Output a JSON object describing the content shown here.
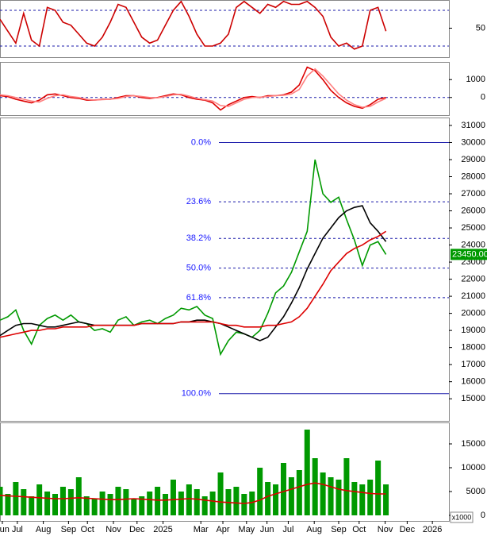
{
  "chart_data": [
    {
      "type": "line",
      "x": [
        0,
        1,
        2,
        3,
        4,
        5,
        6,
        7,
        8,
        9,
        10,
        11,
        12,
        13,
        14,
        15,
        16,
        17,
        18,
        19,
        20,
        21,
        22,
        23,
        24,
        25,
        26,
        27,
        28,
        29,
        30,
        31,
        32,
        33,
        34,
        35,
        36,
        37,
        38,
        39,
        40,
        41,
        42,
        43,
        44,
        45,
        46,
        47,
        48,
        49
      ],
      "xlim": [
        0,
        57
      ],
      "ylim": [
        0,
        100
      ],
      "yticks": [
        50
      ],
      "levels": [
        20,
        80
      ],
      "series": [
        {
          "color": "#cc0000",
          "values": [
            65,
            45,
            25,
            75,
            30,
            20,
            85,
            80,
            60,
            55,
            40,
            25,
            20,
            35,
            60,
            90,
            85,
            60,
            35,
            25,
            30,
            55,
            80,
            95,
            70,
            40,
            20,
            20,
            25,
            40,
            85,
            95,
            85,
            75,
            90,
            85,
            95,
            90,
            90,
            95,
            85,
            70,
            35,
            20,
            25,
            15,
            20,
            80,
            85,
            45
          ]
        }
      ]
    },
    {
      "type": "line",
      "x": [
        0,
        1,
        2,
        3,
        4,
        5,
        6,
        7,
        8,
        9,
        10,
        11,
        12,
        13,
        14,
        15,
        16,
        17,
        18,
        19,
        20,
        21,
        22,
        23,
        24,
        25,
        26,
        27,
        28,
        29,
        30,
        31,
        32,
        33,
        34,
        35,
        36,
        37,
        38,
        39,
        40,
        41,
        42,
        43,
        44,
        45,
        46,
        47,
        48,
        49
      ],
      "xlim": [
        0,
        57
      ],
      "ylim": [
        -900,
        1900
      ],
      "yticks": [
        0,
        1000
      ],
      "levels": [
        0
      ],
      "series": [
        {
          "color": "#dd0000",
          "values": [
            100,
            50,
            -100,
            -200,
            -300,
            -150,
            150,
            200,
            100,
            0,
            -50,
            -150,
            -150,
            -100,
            -100,
            0,
            100,
            100,
            0,
            -50,
            0,
            100,
            200,
            150,
            0,
            -100,
            -150,
            -300,
            -700,
            -400,
            -200,
            0,
            50,
            0,
            100,
            100,
            150,
            300,
            700,
            1700,
            1500,
            1000,
            400,
            0,
            -300,
            -500,
            -600,
            -400,
            -100,
            0
          ]
        },
        {
          "color": "#ff8080",
          "values": [
            150,
            100,
            0,
            -100,
            -200,
            -250,
            -50,
            100,
            150,
            50,
            0,
            -100,
            -150,
            -120,
            -100,
            -50,
            50,
            100,
            50,
            0,
            -20,
            50,
            150,
            180,
            80,
            -50,
            -120,
            -200,
            -450,
            -500,
            -300,
            -100,
            0,
            20,
            50,
            100,
            120,
            200,
            450,
            1200,
            1600,
            1200,
            700,
            200,
            -150,
            -400,
            -550,
            -500,
            -250,
            -50
          ]
        }
      ]
    },
    {
      "type": "line",
      "x": [
        0,
        1,
        2,
        3,
        4,
        5,
        6,
        7,
        8,
        9,
        10,
        11,
        12,
        13,
        14,
        15,
        16,
        17,
        18,
        19,
        20,
        21,
        22,
        23,
        24,
        25,
        26,
        27,
        28,
        29,
        30,
        31,
        32,
        33,
        34,
        35,
        36,
        37,
        38,
        39,
        40,
        41,
        42,
        43,
        44,
        45,
        46,
        47,
        48,
        49
      ],
      "xlim": [
        0,
        57
      ],
      "ylim": [
        13800,
        31370
      ],
      "yticks": [
        15000,
        16000,
        17000,
        18000,
        19000,
        20000,
        21000,
        22000,
        23000,
        24000,
        25000,
        26000,
        27000,
        28000,
        29000,
        30000,
        31000
      ],
      "series": [
        {
          "color": "#009900",
          "values": [
            19600,
            19800,
            20200,
            19000,
            18200,
            19300,
            19700,
            19900,
            19600,
            19900,
            19500,
            19400,
            19000,
            19100,
            18900,
            19600,
            19800,
            19300,
            19500,
            19600,
            19400,
            19700,
            19900,
            20300,
            20200,
            20400,
            19900,
            19700,
            17600,
            18400,
            18900,
            18800,
            18600,
            19000,
            20000,
            21200,
            21600,
            22400,
            23600,
            24800,
            29000,
            27000,
            26500,
            26800,
            25500,
            24300,
            22800,
            24000,
            24200,
            23450
          ]
        },
        {
          "color": "#000000",
          "values": [
            18700,
            19000,
            19300,
            19400,
            19400,
            19300,
            19200,
            19200,
            19300,
            19400,
            19500,
            19400,
            19300,
            19300,
            19300,
            19300,
            19300,
            19300,
            19400,
            19400,
            19400,
            19400,
            19400,
            19500,
            19500,
            19600,
            19600,
            19500,
            19400,
            19200,
            19000,
            18800,
            18600,
            18400,
            18600,
            19200,
            19800,
            20600,
            21500,
            22600,
            23500,
            24400,
            25000,
            25600,
            26000,
            26200,
            26300,
            25300,
            24800,
            24200
          ]
        },
        {
          "color": "#dd0000",
          "values": [
            18600,
            18700,
            18800,
            18900,
            19000,
            19000,
            19100,
            19100,
            19200,
            19200,
            19200,
            19200,
            19300,
            19300,
            19300,
            19300,
            19300,
            19300,
            19400,
            19400,
            19400,
            19400,
            19400,
            19500,
            19500,
            19500,
            19500,
            19500,
            19400,
            19300,
            19300,
            19200,
            19200,
            19200,
            19300,
            19300,
            19400,
            19500,
            19800,
            20300,
            21000,
            21700,
            22500,
            23000,
            23500,
            23800,
            24000,
            24300,
            24500,
            24800
          ]
        }
      ],
      "fib_levels": [
        {
          "value": 30000,
          "label": "0.0%"
        },
        {
          "value": 26531,
          "label": "23.6%"
        },
        {
          "value": 24385,
          "label": "38.2%"
        },
        {
          "value": 22650,
          "label": "50.0%"
        },
        {
          "value": 20915,
          "label": "61.8%"
        },
        {
          "value": 15300,
          "label": "100.0%"
        }
      ],
      "last_price": {
        "value": 23450,
        "label": "23450.00"
      }
    },
    {
      "type": "bar",
      "x": [
        0,
        1,
        2,
        3,
        4,
        5,
        6,
        7,
        8,
        9,
        10,
        11,
        12,
        13,
        14,
        15,
        16,
        17,
        18,
        19,
        20,
        21,
        22,
        23,
        24,
        25,
        26,
        27,
        28,
        29,
        30,
        31,
        32,
        33,
        34,
        35,
        36,
        37,
        38,
        39,
        40,
        41,
        42,
        43,
        44,
        45,
        46,
        47,
        48,
        49
      ],
      "xlim": [
        0,
        57
      ],
      "ylim": [
        -1000,
        19000
      ],
      "yticks": [
        0,
        5000,
        10000,
        15000
      ],
      "unit_label": "x1000",
      "xticks": [
        {
          "value": 0.3,
          "label": "Jun"
        },
        {
          "value": 2.2,
          "label": "Jul"
        },
        {
          "value": 5.5,
          "label": "Aug"
        },
        {
          "value": 8.7,
          "label": "Sep"
        },
        {
          "value": 11.1,
          "label": "Oct"
        },
        {
          "value": 14.4,
          "label": "Nov"
        },
        {
          "value": 17.4,
          "label": "Dec"
        },
        {
          "value": 20.7,
          "label": "2025"
        },
        {
          "value": 25.5,
          "label": "Mar"
        },
        {
          "value": 28.3,
          "label": "Apr"
        },
        {
          "value": 31.3,
          "label": "May"
        },
        {
          "value": 33.9,
          "label": "Jun"
        },
        {
          "value": 36.6,
          "label": "Jul"
        },
        {
          "value": 39.9,
          "label": "Aug"
        },
        {
          "value": 43,
          "label": "Sep"
        },
        {
          "value": 45.6,
          "label": "Oct"
        },
        {
          "value": 48.9,
          "label": "Nov"
        },
        {
          "value": 51.7,
          "label": "Dec"
        },
        {
          "value": 54.9,
          "label": "2026"
        }
      ],
      "series": [
        {
          "type": "bar",
          "color": "#009900",
          "values": [
            6000,
            4500,
            7000,
            5500,
            4000,
            6500,
            5000,
            4500,
            6000,
            5500,
            8000,
            4000,
            3500,
            5000,
            4500,
            6000,
            5500,
            3500,
            4000,
            5000,
            6000,
            4500,
            7500,
            5000,
            6500,
            5500,
            4000,
            5000,
            9000,
            5500,
            6000,
            4500,
            5000,
            10000,
            7000,
            6500,
            11000,
            8000,
            9500,
            18000,
            12000,
            9000,
            8000,
            7500,
            12000,
            7000,
            6500,
            7500,
            11500,
            6500
          ]
        },
        {
          "type": "line",
          "color": "#dd0000",
          "values": [
            4200,
            4100,
            4000,
            3900,
            3800,
            3700,
            3600,
            3500,
            3500,
            3600,
            3700,
            3600,
            3500,
            3400,
            3300,
            3300,
            3400,
            3500,
            3400,
            3300,
            3200,
            3200,
            3300,
            3400,
            3500,
            3400,
            3200,
            3000,
            2800,
            2700,
            2600,
            2500,
            2700,
            3200,
            4000,
            4500,
            5000,
            5500,
            6000,
            6500,
            6800,
            6500,
            6000,
            5500,
            5200,
            5000,
            4800,
            4600,
            4500,
            4500
          ]
        }
      ]
    }
  ]
}
